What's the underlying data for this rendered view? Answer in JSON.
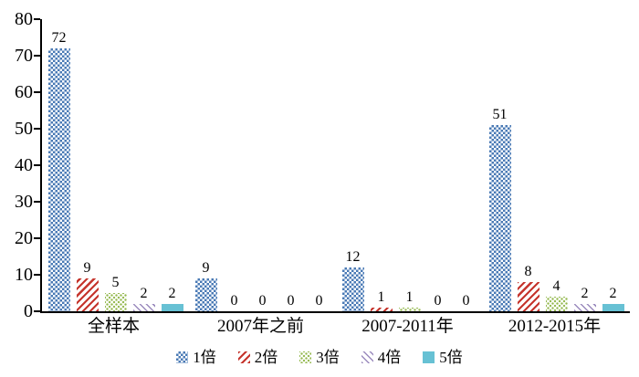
{
  "chart_data": {
    "type": "bar",
    "title": "",
    "categories": [
      "全样本",
      "2007年之前",
      "2007-2011年",
      "2012-2015年"
    ],
    "series": [
      {
        "name": "1倍",
        "values": [
          72,
          9,
          12,
          51
        ],
        "color": "#4a7ab5",
        "pattern": "checker"
      },
      {
        "name": "2倍",
        "values": [
          9,
          0,
          1,
          8
        ],
        "color": "#c5342c",
        "pattern": "diag-up"
      },
      {
        "name": "3倍",
        "values": [
          5,
          0,
          1,
          4
        ],
        "color": "#94b84e",
        "pattern": "dots"
      },
      {
        "name": "4倍",
        "values": [
          2,
          0,
          0,
          2
        ],
        "color": "#9b8bbe",
        "pattern": "diag-down"
      },
      {
        "name": "5倍",
        "values": [
          2,
          0,
          0,
          2
        ],
        "color": "#67c1d4",
        "pattern": "solid"
      }
    ],
    "xlabel": "",
    "ylabel": "",
    "ylim": [
      0,
      80
    ],
    "yticks": [
      0,
      10,
      20,
      30,
      40,
      50,
      60,
      70,
      80
    ],
    "grid": false,
    "value_labels": true,
    "legend_position": "bottom",
    "axis_color": "#000000",
    "background_color": "#ffffff"
  }
}
